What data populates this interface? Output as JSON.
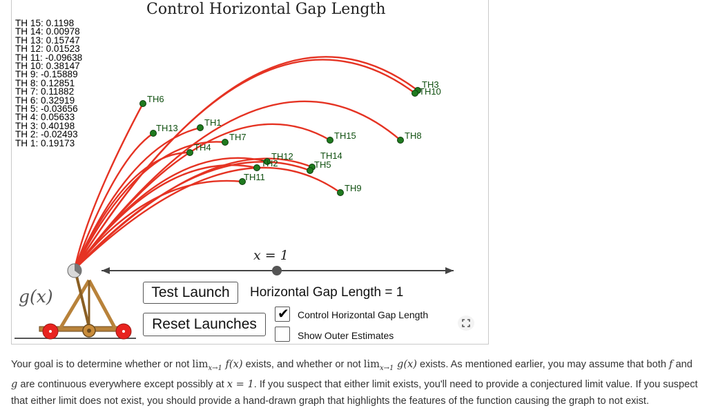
{
  "applet": {
    "title": "Control Horizontal Gap Length",
    "th_values": [
      "TH 15: 0.1198",
      "TH 14: 0.00978",
      "TH 13: 0.15747",
      "TH 12: 0.01523",
      "TH 11: -0.09638",
      "TH 10: 0.38147",
      "TH 9: -0.15889",
      "TH 8: 0.12851",
      "TH 7: 0.11882",
      "TH 6: 0.32919",
      "TH 5: -0.03656",
      "TH 4: 0.05633",
      "TH 3: 0.40198",
      "TH 2: -0.02493",
      "TH 1: 0.19173"
    ],
    "points": [
      {
        "label": "TH6"
      },
      {
        "label": "TH13"
      },
      {
        "label": "TH1"
      },
      {
        "label": "TH7"
      },
      {
        "label": "TH4"
      },
      {
        "label": "TH12"
      },
      {
        "label": "TH2"
      },
      {
        "label": "TH11"
      },
      {
        "label": "TH14"
      },
      {
        "label": "TH5"
      },
      {
        "label": "TH15"
      },
      {
        "label": "TH9"
      },
      {
        "label": "TH8"
      },
      {
        "label": "TH3"
      },
      {
        "label": "TH10"
      }
    ],
    "slider_label": "x = 1",
    "slider_value": 1,
    "function_label": "g(x)",
    "test_launch_label": "Test Launch",
    "reset_launches_label": "Reset Launches",
    "gap_length_text": "Horizontal Gap Length = 1",
    "control_gap_checkbox": {
      "label": "Control Horizontal Gap Length",
      "checked": true
    },
    "outer_estimates_checkbox": {
      "label": "Show Outer Estimates",
      "checked": false
    },
    "colors": {
      "trajectory": "#e53323",
      "point": "#1f7a1f",
      "axis": "#444444",
      "wheel": "#e8231f",
      "catapult": "#b8823a"
    }
  },
  "description": {
    "p1": "Your goal is to determine whether or not ",
    "lim_f": "lim",
    "sub_f": "x→1",
    "fx": " f(x)",
    "p2": " exists, and whether or not ",
    "lim_g": "lim",
    "sub_g": "x→1",
    "gx": " g(x)",
    "p3": " exists. As mentioned earlier, you may assume that both ",
    "f": "f",
    "p4": " and ",
    "g": "g",
    "p5": " are continuous everywhere except possibly at ",
    "x_eq_1": "x = 1",
    "p6": ". If you suspect that either limit exists, you'll need to provide a conjectured limit value. If you suspect that either limit does not exist, you should provide a hand-drawn graph that highlights the features of the function causing the graph to not exist."
  }
}
